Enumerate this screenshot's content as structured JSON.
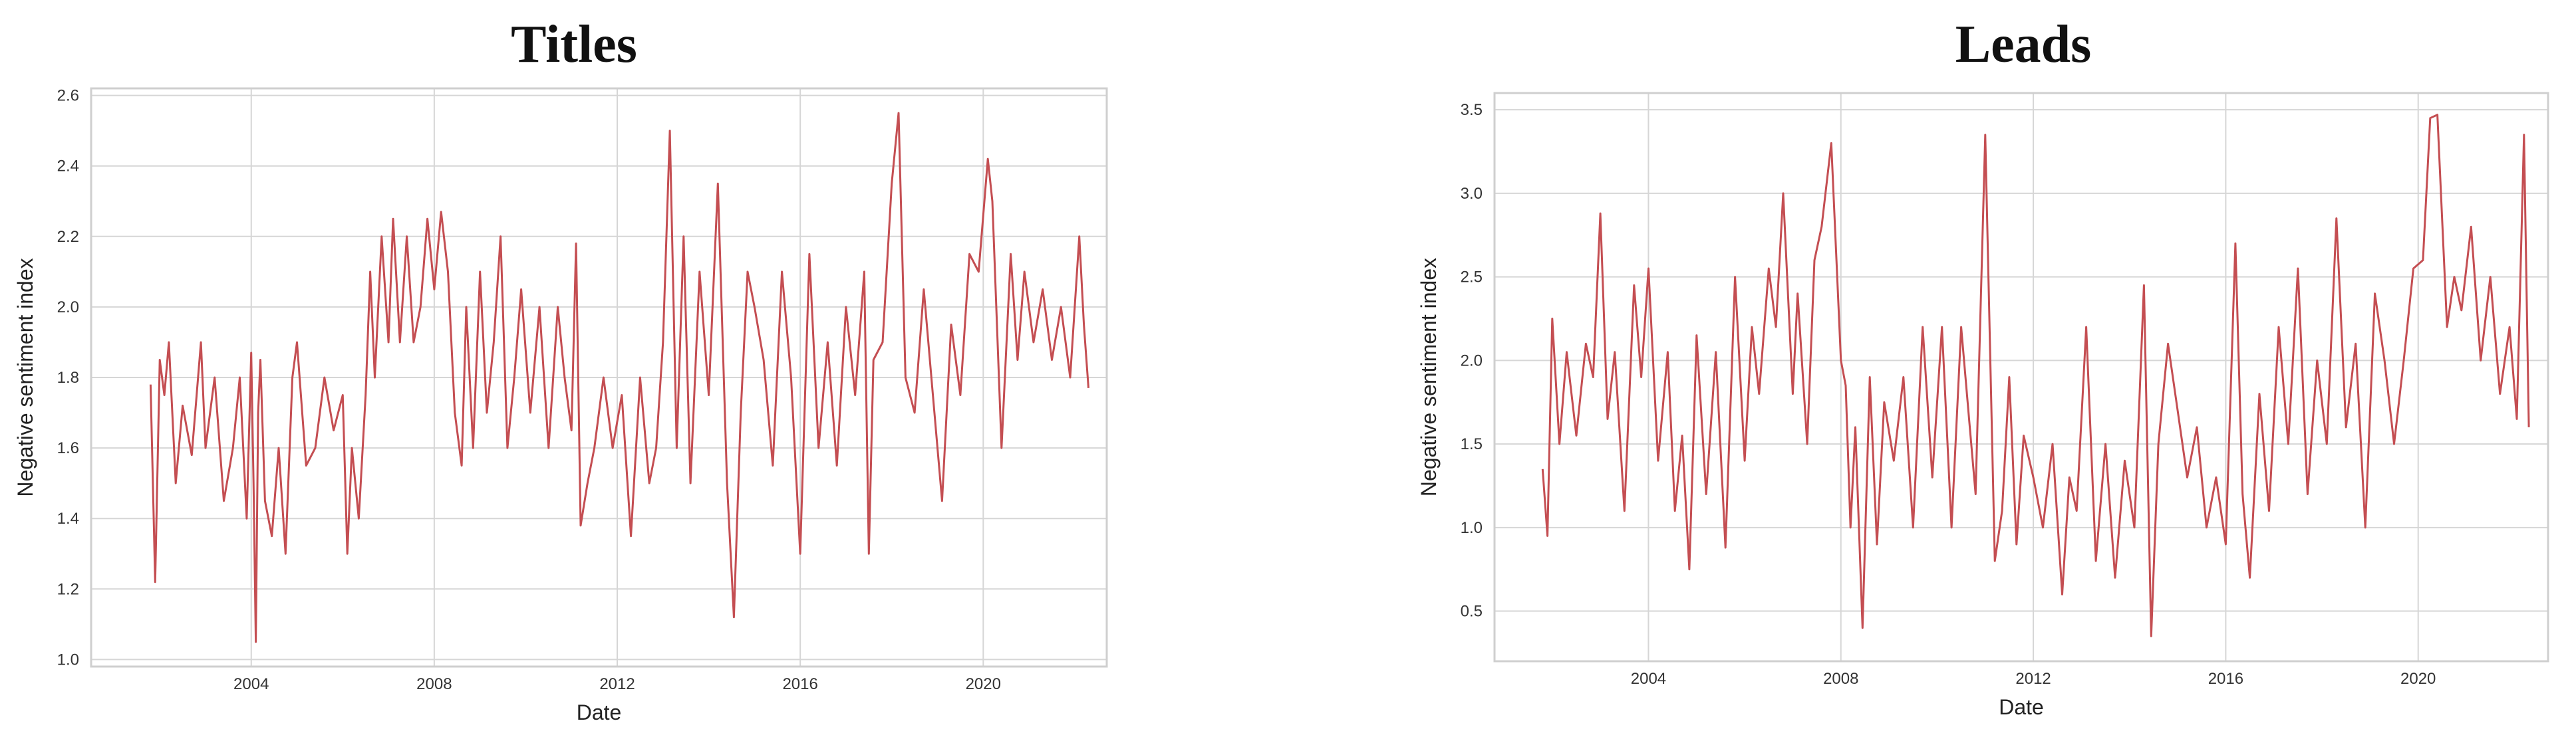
{
  "chart_data": [
    {
      "type": "line",
      "title": "Titles",
      "xlabel": "Date",
      "ylabel": "Negative sentiment index",
      "xlim": [
        2000.5,
        2022.7
      ],
      "ylim": [
        0.98,
        2.62
      ],
      "xticks": [
        2004,
        2008,
        2012,
        2016,
        2020
      ],
      "yticks": [
        1.0,
        1.2,
        1.4,
        1.6,
        1.8,
        2.0,
        2.2,
        2.4,
        2.6
      ],
      "ytick_labels": [
        "1.0",
        "1.2",
        "1.4",
        "1.6",
        "1.8",
        "2.0",
        "2.2",
        "2.4",
        "2.6"
      ],
      "grid": true,
      "series": [
        {
          "color": "#c44e52",
          "x": [
            2001.8,
            2001.9,
            2002.0,
            2002.1,
            2002.2,
            2002.35,
            2002.5,
            2002.7,
            2002.9,
            2003.0,
            2003.2,
            2003.4,
            2003.6,
            2003.75,
            2003.9,
            2004.0,
            2004.05,
            2004.1,
            2004.15,
            2004.2,
            2004.3,
            2004.45,
            2004.6,
            2004.75,
            2004.9,
            2005.0,
            2005.2,
            2005.4,
            2005.6,
            2005.8,
            2006.0,
            2006.1,
            2006.2,
            2006.35,
            2006.5,
            2006.6,
            2006.7,
            2006.85,
            2007.0,
            2007.1,
            2007.25,
            2007.4,
            2007.55,
            2007.7,
            2007.85,
            2008.0,
            2008.15,
            2008.3,
            2008.45,
            2008.6,
            2008.7,
            2008.85,
            2009.0,
            2009.15,
            2009.3,
            2009.45,
            2009.6,
            2009.75,
            2009.9,
            2010.1,
            2010.3,
            2010.5,
            2010.7,
            2010.85,
            2011.0,
            2011.1,
            2011.2,
            2011.35,
            2011.5,
            2011.7,
            2011.9,
            2012.1,
            2012.3,
            2012.5,
            2012.7,
            2012.85,
            2013.0,
            2013.15,
            2013.3,
            2013.45,
            2013.6,
            2013.8,
            2014.0,
            2014.2,
            2014.4,
            2014.55,
            2014.7,
            2014.85,
            2015.0,
            2015.2,
            2015.4,
            2015.6,
            2015.8,
            2016.0,
            2016.2,
            2016.4,
            2016.6,
            2016.8,
            2017.0,
            2017.2,
            2017.4,
            2017.5,
            2017.6,
            2017.8,
            2018.0,
            2018.15,
            2018.3,
            2018.5,
            2018.7,
            2018.9,
            2019.1,
            2019.3,
            2019.5,
            2019.7,
            2019.9,
            2020.1,
            2020.2,
            2020.4,
            2020.6,
            2020.75,
            2020.9,
            2021.1,
            2021.3,
            2021.5,
            2021.7,
            2021.9,
            2022.1,
            2022.2,
            2022.3
          ],
          "y": [
            1.78,
            1.22,
            1.85,
            1.75,
            1.9,
            1.5,
            1.72,
            1.58,
            1.9,
            1.6,
            1.8,
            1.45,
            1.6,
            1.8,
            1.4,
            1.87,
            1.5,
            1.05,
            1.7,
            1.85,
            1.45,
            1.35,
            1.6,
            1.3,
            1.8,
            1.9,
            1.55,
            1.6,
            1.8,
            1.65,
            1.75,
            1.3,
            1.6,
            1.4,
            1.75,
            2.1,
            1.8,
            2.2,
            1.9,
            2.25,
            1.9,
            2.2,
            1.9,
            2.0,
            2.25,
            2.05,
            2.27,
            2.1,
            1.7,
            1.55,
            2.0,
            1.6,
            2.1,
            1.7,
            1.9,
            2.2,
            1.6,
            1.8,
            2.05,
            1.7,
            2.0,
            1.6,
            2.0,
            1.8,
            1.65,
            2.18,
            1.38,
            1.5,
            1.6,
            1.8,
            1.6,
            1.75,
            1.35,
            1.8,
            1.5,
            1.6,
            1.9,
            2.5,
            1.6,
            2.2,
            1.5,
            2.1,
            1.75,
            2.35,
            1.5,
            1.12,
            1.7,
            2.1,
            2.0,
            1.85,
            1.55,
            2.1,
            1.8,
            1.3,
            2.15,
            1.6,
            1.9,
            1.55,
            2.0,
            1.75,
            2.1,
            1.3,
            1.85,
            1.9,
            2.35,
            2.55,
            1.8,
            1.7,
            2.05,
            1.75,
            1.45,
            1.95,
            1.75,
            2.15,
            2.1,
            2.42,
            2.3,
            1.6,
            2.15,
            1.85,
            2.1,
            1.9,
            2.05,
            1.85,
            2.0,
            1.8,
            2.2,
            1.95,
            1.77
          ]
        }
      ]
    },
    {
      "type": "line",
      "title": "Leads",
      "xlabel": "Date",
      "ylabel": "Negative sentiment index",
      "xlim": [
        2000.8,
        2022.7
      ],
      "ylim": [
        0.2,
        3.6
      ],
      "xticks": [
        2004,
        2008,
        2012,
        2016,
        2020
      ],
      "yticks": [
        0.5,
        1.0,
        1.5,
        2.0,
        2.5,
        3.0,
        3.5
      ],
      "ytick_labels": [
        "0.5",
        "1.0",
        "1.5",
        "2.0",
        "2.5",
        "3.0",
        "3.5"
      ],
      "grid": true,
      "series": [
        {
          "color": "#c44e52",
          "x": [
            2001.8,
            2001.9,
            2002.0,
            2002.15,
            2002.3,
            2002.5,
            2002.7,
            2002.85,
            2003.0,
            2003.15,
            2003.3,
            2003.5,
            2003.7,
            2003.85,
            2004.0,
            2004.2,
            2004.4,
            2004.55,
            2004.7,
            2004.85,
            2005.0,
            2005.2,
            2005.4,
            2005.6,
            2005.8,
            2006.0,
            2006.15,
            2006.3,
            2006.5,
            2006.65,
            2006.8,
            2007.0,
            2007.1,
            2007.3,
            2007.45,
            2007.6,
            2007.8,
            2008.0,
            2008.1,
            2008.2,
            2008.3,
            2008.45,
            2008.6,
            2008.75,
            2008.9,
            2009.1,
            2009.3,
            2009.5,
            2009.7,
            2009.9,
            2010.1,
            2010.3,
            2010.5,
            2010.65,
            2010.8,
            2011.0,
            2011.2,
            2011.35,
            2011.5,
            2011.65,
            2011.8,
            2012.0,
            2012.2,
            2012.4,
            2012.6,
            2012.75,
            2012.9,
            2013.1,
            2013.3,
            2013.5,
            2013.7,
            2013.9,
            2014.1,
            2014.3,
            2014.45,
            2014.6,
            2014.8,
            2015.0,
            2015.2,
            2015.4,
            2015.6,
            2015.8,
            2016.0,
            2016.2,
            2016.35,
            2016.5,
            2016.7,
            2016.9,
            2017.1,
            2017.3,
            2017.5,
            2017.7,
            2017.9,
            2018.1,
            2018.3,
            2018.5,
            2018.7,
            2018.9,
            2019.1,
            2019.3,
            2019.5,
            2019.7,
            2019.9,
            2020.1,
            2020.25,
            2020.4,
            2020.6,
            2020.75,
            2020.9,
            2021.1,
            2021.3,
            2021.5,
            2021.7,
            2021.9,
            2022.05,
            2022.2,
            2022.3
          ],
          "y": [
            1.35,
            0.95,
            2.25,
            1.5,
            2.05,
            1.55,
            2.1,
            1.9,
            2.88,
            1.65,
            2.05,
            1.1,
            2.45,
            1.9,
            2.55,
            1.4,
            2.05,
            1.1,
            1.55,
            0.75,
            2.15,
            1.2,
            2.05,
            0.88,
            2.5,
            1.4,
            2.2,
            1.8,
            2.55,
            2.2,
            3.0,
            1.8,
            2.4,
            1.5,
            2.6,
            2.8,
            3.3,
            2.0,
            1.85,
            1.0,
            1.6,
            0.4,
            1.9,
            0.9,
            1.75,
            1.4,
            1.9,
            1.0,
            2.2,
            1.3,
            2.2,
            1.0,
            2.2,
            1.7,
            1.2,
            3.35,
            0.8,
            1.1,
            1.9,
            0.9,
            1.55,
            1.3,
            1.0,
            1.5,
            0.6,
            1.3,
            1.1,
            2.2,
            0.8,
            1.5,
            0.7,
            1.4,
            1.0,
            2.45,
            0.35,
            1.5,
            2.1,
            1.7,
            1.3,
            1.6,
            1.0,
            1.3,
            0.9,
            2.7,
            1.2,
            0.7,
            1.8,
            1.1,
            2.2,
            1.5,
            2.55,
            1.2,
            2.0,
            1.5,
            2.85,
            1.6,
            2.1,
            1.0,
            2.4,
            2.0,
            1.5,
            2.0,
            2.55,
            2.6,
            3.45,
            3.47,
            2.2,
            2.5,
            2.3,
            2.8,
            2.0,
            2.5,
            1.8,
            2.2,
            1.65,
            3.35,
            1.6
          ]
        }
      ]
    }
  ]
}
